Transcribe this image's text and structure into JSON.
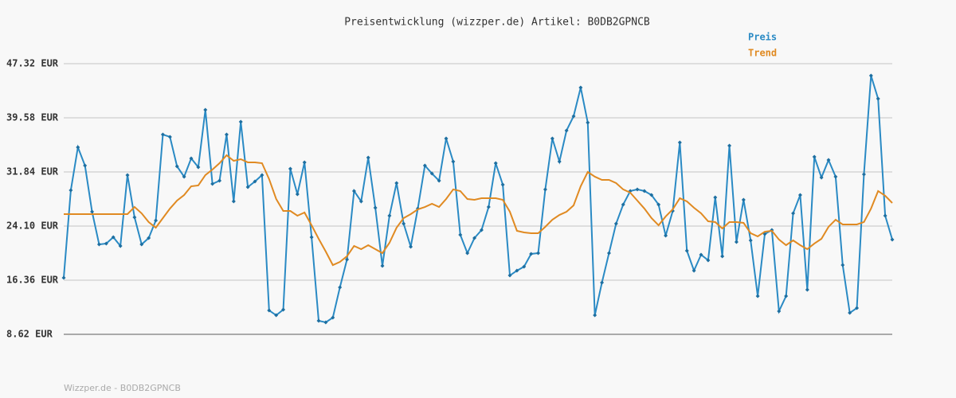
{
  "chart_data": {
    "type": "line",
    "title": "Preisentwicklung (wizzper.de) Artikel: B0DB2GPNCB",
    "footer": "Wizzper.de - B0DB2GPNCB",
    "ylim": [
      8.62,
      47.32
    ],
    "yticks": [
      {
        "value": 8.62,
        "label": "8.62 EUR"
      },
      {
        "value": 16.36,
        "label": "16.36 EUR"
      },
      {
        "value": 24.1,
        "label": "24.10 EUR"
      },
      {
        "value": 31.84,
        "label": "31.84 EUR"
      },
      {
        "value": 39.58,
        "label": "39.58 EUR"
      },
      {
        "value": 47.32,
        "label": "47.32 EUR"
      }
    ],
    "grid": true,
    "legend": "top-right",
    "series": [
      {
        "name": "Preis",
        "color": "#2a8ac4",
        "markers": true,
        "values": [
          16.7,
          29.22,
          35.37,
          32.75,
          26.15,
          21.48,
          21.6,
          22.51,
          21.26,
          31.39,
          25.35,
          21.48,
          22.39,
          24.9,
          37.19,
          36.85,
          32.64,
          31.16,
          33.78,
          32.52,
          40.72,
          30.13,
          30.59,
          37.19,
          27.63,
          39.01,
          29.68,
          30.47,
          31.39,
          12.04,
          11.35,
          12.15,
          32.3,
          28.65,
          33.21,
          22.51,
          10.56,
          10.33,
          11.01,
          15.34,
          19.32,
          29.11,
          27.63,
          33.89,
          26.72,
          18.41,
          25.58,
          30.25,
          24.44,
          21.14,
          26.6,
          32.75,
          31.61,
          30.59,
          36.62,
          33.32,
          22.85,
          20.23,
          22.39,
          23.53,
          26.83,
          33.09,
          30.02,
          17.04,
          17.73,
          18.3,
          20.12,
          20.23,
          29.34,
          36.62,
          33.32,
          37.76,
          39.81,
          43.91,
          38.9,
          11.35,
          16.02,
          20.23,
          24.44,
          27.17,
          29.11,
          29.34,
          29.11,
          28.54,
          27.17,
          22.73,
          26.26,
          36.05,
          20.57,
          17.73,
          20.0,
          19.21,
          28.2,
          19.78,
          35.6,
          21.82,
          27.86,
          22.05,
          14.08,
          22.96,
          23.53,
          11.92,
          14.08,
          25.92,
          28.54,
          15.0,
          34.0,
          31.04,
          33.55,
          31.16,
          18.52,
          11.69,
          12.38,
          31.5,
          45.61,
          42.31,
          25.58,
          22.17
        ]
      },
      {
        "name": "Trend",
        "color": "#e08a22",
        "markers": false,
        "values": [
          25.81,
          25.81,
          25.81,
          25.81,
          25.81,
          25.81,
          25.81,
          25.81,
          25.81,
          25.81,
          26.83,
          25.92,
          24.67,
          23.87,
          25.24,
          26.6,
          27.74,
          28.54,
          29.79,
          29.91,
          31.39,
          32.18,
          33.09,
          34.23,
          33.43,
          33.66,
          33.21,
          33.21,
          33.09,
          30.82,
          27.97,
          26.26,
          26.26,
          25.58,
          26.04,
          24.21,
          22.28,
          20.46,
          18.52,
          18.98,
          19.78,
          21.26,
          20.8,
          21.37,
          20.8,
          20.23,
          21.71,
          23.87,
          25.24,
          25.81,
          26.49,
          26.83,
          27.29,
          26.83,
          27.97,
          29.34,
          29.11,
          27.97,
          27.86,
          28.08,
          28.08,
          28.08,
          27.86,
          26.15,
          23.42,
          23.19,
          23.08,
          23.08,
          23.99,
          25.01,
          25.69,
          26.15,
          27.06,
          29.79,
          31.84,
          31.16,
          30.7,
          30.7,
          30.25,
          29.34,
          28.88,
          27.74,
          26.6,
          25.24,
          24.21,
          25.47,
          26.49,
          28.08,
          27.63,
          26.72,
          25.92,
          24.78,
          24.67,
          23.76,
          24.67,
          24.67,
          24.56,
          23.08,
          22.62,
          23.3,
          23.42,
          22.17,
          21.37,
          22.05,
          21.37,
          20.8,
          21.6,
          22.28,
          23.99,
          25.01,
          24.33,
          24.33,
          24.33,
          24.67,
          26.6,
          29.11,
          28.43,
          27.4
        ]
      }
    ]
  }
}
